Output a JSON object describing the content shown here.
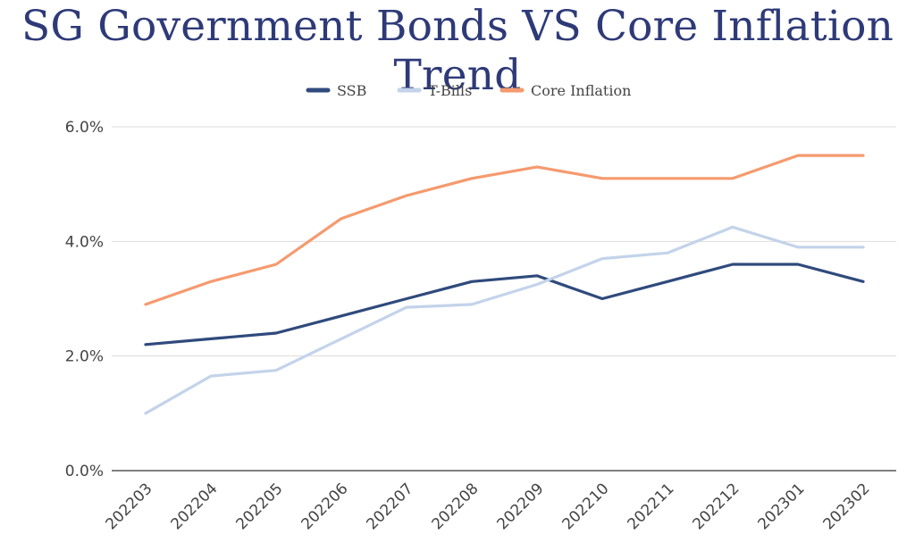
{
  "chart_data": {
    "type": "line",
    "title": "SG Government Bonds VS Core Inflation Trend",
    "xlabel": "",
    "ylabel": "",
    "categories": [
      "202203",
      "202204",
      "202205",
      "202206",
      "202207",
      "202208",
      "202209",
      "202210",
      "202211",
      "202212",
      "202301",
      "202302"
    ],
    "ylim": [
      0,
      6
    ],
    "yticks": [
      0,
      2,
      4,
      6
    ],
    "ytick_labels": [
      "0.0%",
      "2.0%",
      "4.0%",
      "6.0%"
    ],
    "grid": true,
    "legend_position": "top-center",
    "series": [
      {
        "name": "SSB",
        "color": "#2f4a7c",
        "values": [
          2.2,
          2.3,
          2.4,
          2.7,
          3.0,
          3.3,
          3.4,
          3.0,
          3.3,
          3.6,
          3.6,
          3.3
        ]
      },
      {
        "name": "T-Bills",
        "color": "#c3d3ea",
        "values": [
          1.0,
          1.65,
          1.75,
          2.3,
          2.85,
          2.9,
          3.25,
          3.7,
          3.8,
          4.25,
          3.9,
          3.9
        ]
      },
      {
        "name": "Core Inflation",
        "color": "#f59a6e",
        "values": [
          2.9,
          3.3,
          3.6,
          4.4,
          4.8,
          5.1,
          5.3,
          5.1,
          5.1,
          5.1,
          5.5,
          5.5
        ]
      }
    ]
  }
}
